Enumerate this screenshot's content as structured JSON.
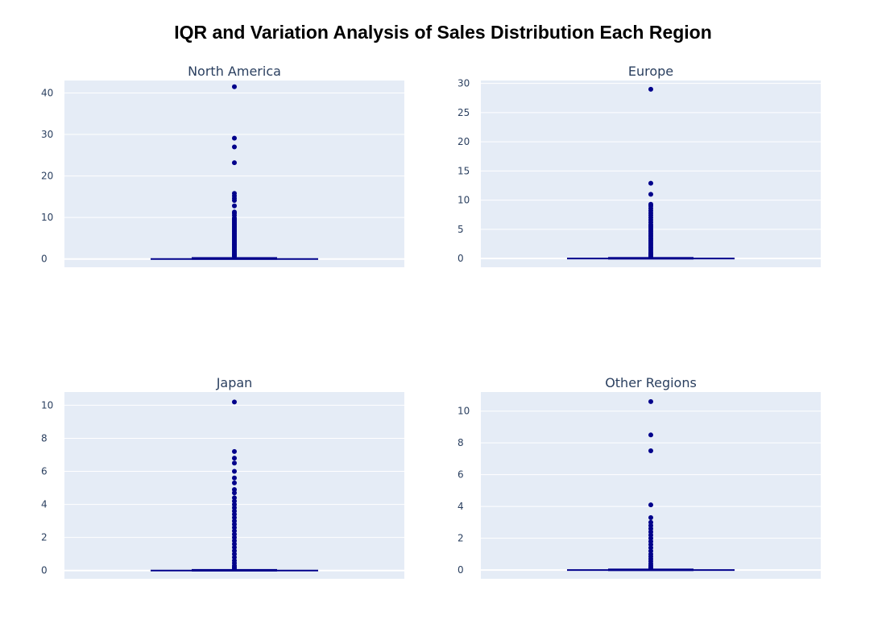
{
  "chart_title": "IQR and Variation Analysis of Sales Distribution Each Region",
  "colors": {
    "plot_bg": "#e5ecf6",
    "grid": "#ffffff",
    "box": "#00008b",
    "text": "#2a3f5f"
  },
  "chart_data": [
    {
      "type": "box",
      "title": "North America",
      "ylim": [
        -2,
        43
      ],
      "yticks": [
        0,
        10,
        20,
        30,
        40
      ],
      "box": {
        "min": 0,
        "q1": 0,
        "median": 0.08,
        "q3": 0.24,
        "upper_fence": 0.6
      },
      "outliers": [
        41.5,
        29.1,
        27,
        23.2,
        15.8,
        15.2,
        14.6,
        14.1,
        12.8,
        11.3,
        11,
        10.5,
        9.9,
        9.6,
        9.3,
        9,
        8.7,
        8.4,
        8.1,
        7.8,
        7.5,
        7.2,
        6.9,
        6.6,
        6.3,
        6,
        5.7,
        5.4,
        5.1,
        4.8,
        4.5,
        4.2,
        3.9,
        3.6,
        3.3,
        3,
        2.7,
        2.4,
        2.1,
        1.8,
        1.5,
        1.2,
        1,
        0.8,
        0.65
      ]
    },
    {
      "type": "box",
      "title": "Europe",
      "ylim": [
        -1.5,
        30.5
      ],
      "yticks": [
        0,
        5,
        10,
        15,
        20,
        25,
        30
      ],
      "box": {
        "min": 0,
        "q1": 0,
        "median": 0.02,
        "q3": 0.11,
        "upper_fence": 0.27
      },
      "outliers": [
        29,
        12.9,
        11,
        9.3,
        9,
        8.6,
        8.2,
        7.8,
        7.4,
        7,
        6.6,
        6.2,
        5.8,
        5.5,
        5.2,
        4.9,
        4.6,
        4.3,
        4,
        3.7,
        3.4,
        3.1,
        2.8,
        2.5,
        2.2,
        1.9,
        1.6,
        1.3,
        1,
        0.8,
        0.6,
        0.45,
        0.32
      ]
    },
    {
      "type": "box",
      "title": "Japan",
      "ylim": [
        -0.5,
        10.8
      ],
      "yticks": [
        0,
        2,
        4,
        6,
        8,
        10
      ],
      "box": {
        "min": 0,
        "q1": 0,
        "median": 0,
        "q3": 0.04,
        "upper_fence": 0.1
      },
      "outliers": [
        10.2,
        7.2,
        6.8,
        6.5,
        6,
        5.6,
        5.3,
        4.9,
        4.7,
        4.4,
        4.2,
        4,
        3.8,
        3.6,
        3.4,
        3.2,
        3,
        2.8,
        2.6,
        2.4,
        2.2,
        2,
        1.8,
        1.6,
        1.4,
        1.2,
        1,
        0.8,
        0.6,
        0.45,
        0.3,
        0.2,
        0.12
      ]
    },
    {
      "type": "box",
      "title": "Other Regions",
      "ylim": [
        -0.55,
        11.2
      ],
      "yticks": [
        0,
        2,
        4,
        6,
        8,
        10
      ],
      "box": {
        "min": 0,
        "q1": 0,
        "median": 0.01,
        "q3": 0.04,
        "upper_fence": 0.1
      },
      "outliers": [
        10.6,
        8.5,
        7.5,
        4.1,
        3.3,
        3,
        2.8,
        2.6,
        2.4,
        2.2,
        2,
        1.8,
        1.6,
        1.4,
        1.2,
        1,
        0.85,
        0.7,
        0.55,
        0.4,
        0.28,
        0.18,
        0.12
      ]
    }
  ]
}
